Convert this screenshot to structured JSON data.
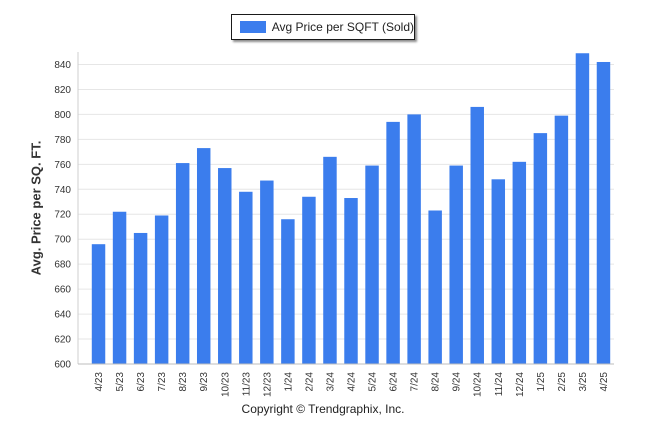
{
  "legend": {
    "label": "Avg Price per SQFT (Sold)",
    "color": "#3b7ded"
  },
  "copyright": "Copyright © Trendgraphix, Inc.",
  "chart_data": {
    "type": "bar",
    "title": "",
    "xlabel": "",
    "ylabel": "Avg. Price per SQ. FT.",
    "ylim": [
      600,
      850
    ],
    "yticks": [
      600,
      620,
      640,
      660,
      680,
      700,
      720,
      740,
      760,
      780,
      800,
      820,
      840
    ],
    "grid": true,
    "legend_position": "top-center",
    "categories": [
      "4/23",
      "5/23",
      "6/23",
      "7/23",
      "8/23",
      "9/23",
      "10/23",
      "11/23",
      "12/23",
      "1/24",
      "2/24",
      "3/24",
      "4/24",
      "5/24",
      "6/24",
      "7/24",
      "8/24",
      "9/24",
      "10/24",
      "11/24",
      "12/24",
      "1/25",
      "2/25",
      "3/25",
      "4/25"
    ],
    "series": [
      {
        "name": "Avg Price per SQFT (Sold)",
        "color": "#3b7ded",
        "values": [
          696,
          722,
          705,
          719,
          761,
          773,
          757,
          738,
          747,
          716,
          734,
          766,
          733,
          759,
          794,
          800,
          723,
          759,
          806,
          748,
          762,
          785,
          799,
          849,
          842
        ]
      }
    ]
  }
}
